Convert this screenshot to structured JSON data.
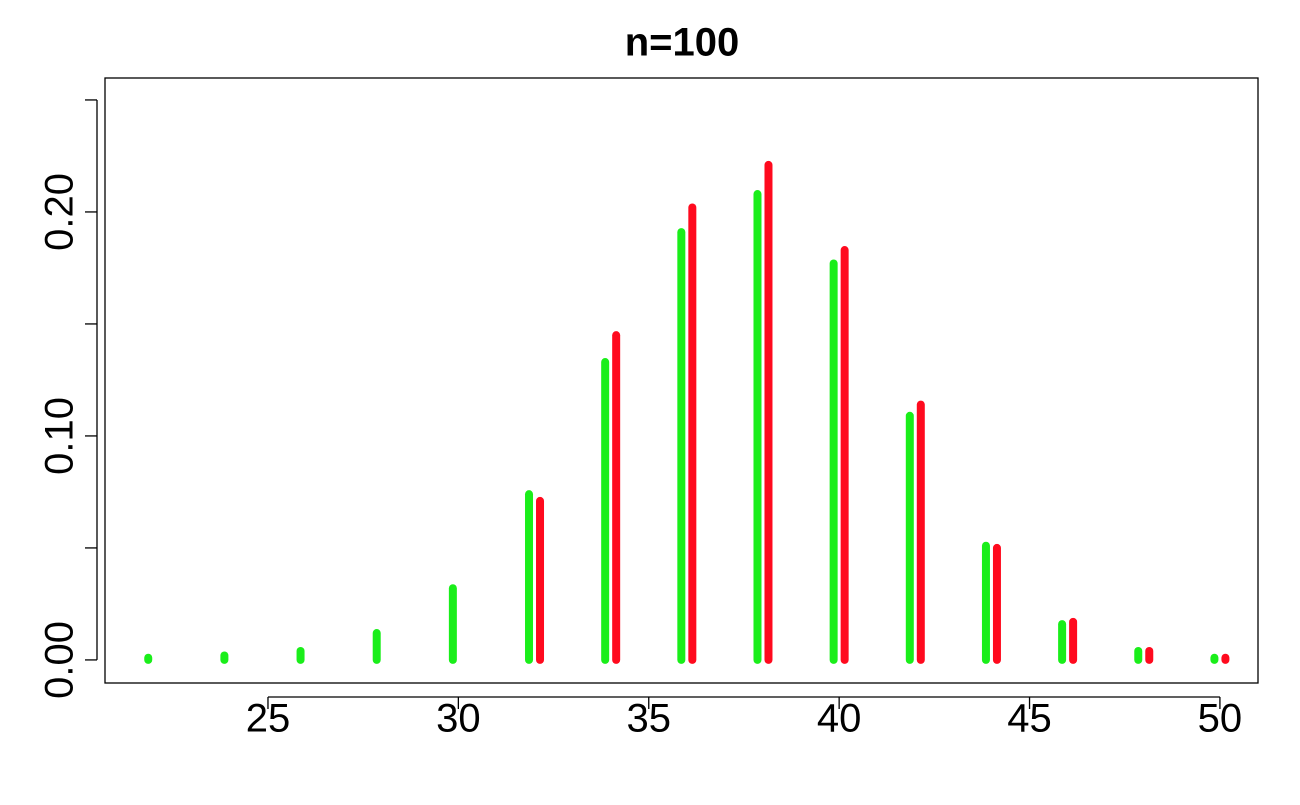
{
  "chart_data": {
    "type": "bar",
    "title": "n=100",
    "x": [
      22,
      24,
      26,
      28,
      30,
      32,
      34,
      36,
      38,
      40,
      42,
      44,
      46,
      48,
      50
    ],
    "series": [
      {
        "color": "#1aee1a",
        "values": [
          0.001,
          0.002,
          0.004,
          0.012,
          0.032,
          0.074,
          0.133,
          0.191,
          0.208,
          0.177,
          0.109,
          0.051,
          0.016,
          0.004,
          0.001
        ]
      },
      {
        "color": "#ff0a1e",
        "values": [
          null,
          null,
          null,
          null,
          null,
          0.071,
          0.145,
          0.202,
          0.221,
          0.183,
          0.114,
          0.05,
          0.017,
          0.004,
          0.001
        ]
      }
    ],
    "xlim": [
      20.72,
      51.0
    ],
    "ylim": [
      -0.0103,
      0.2598
    ],
    "xticks": [
      25,
      30,
      35,
      40,
      45,
      50
    ],
    "yticks": [
      {
        "value": 0,
        "label": "0.00"
      },
      {
        "value": 0.1,
        "label": "0.10"
      },
      {
        "value": 0.2,
        "label": "0.20"
      }
    ],
    "yminor_ticks": [
      0.05,
      0.15,
      0.25
    ],
    "grid": false
  }
}
